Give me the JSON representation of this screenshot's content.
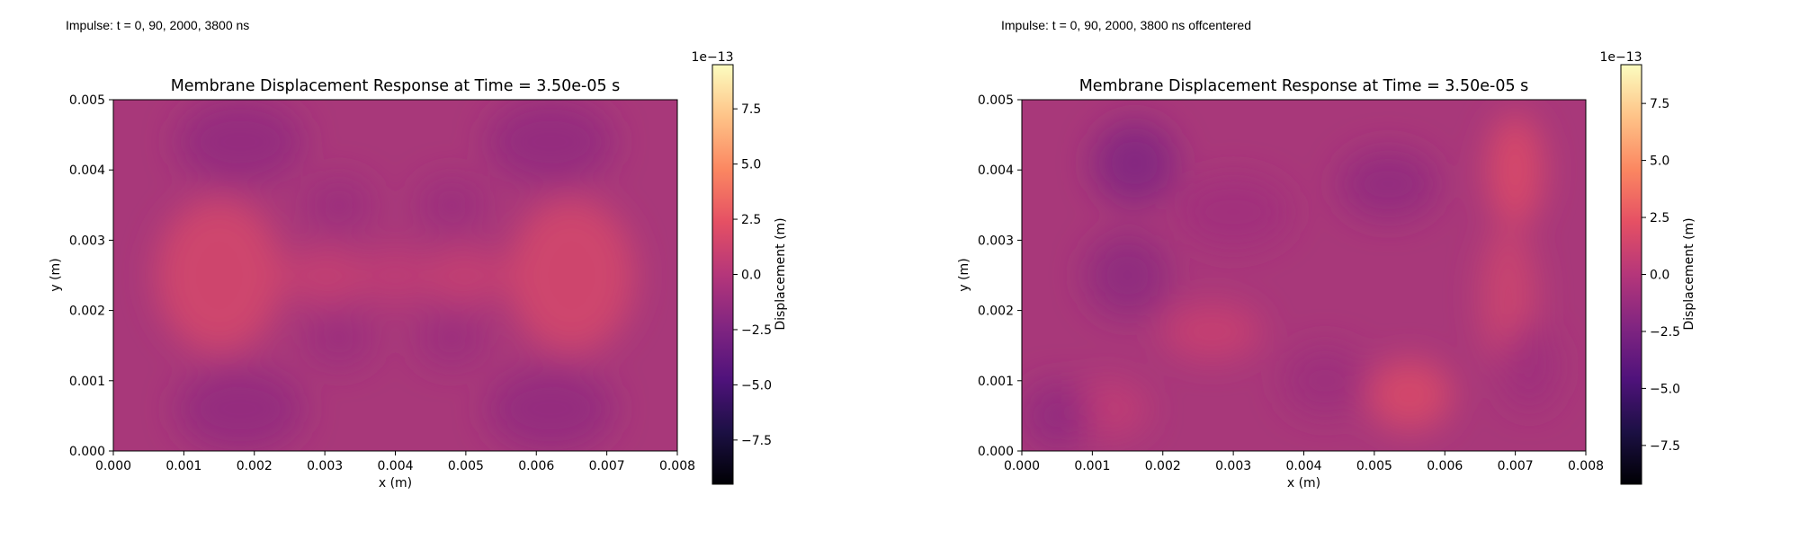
{
  "panels": [
    {
      "caption": "Impulse: t = 0, 90, 2000, 3800 ns",
      "chart_data": {
        "type": "heatmap",
        "title": "Membrane Displacement Response at Time = 3.50e-05 s",
        "xlabel": "x (m)",
        "ylabel": "y (m)",
        "xlim": [
          0,
          0.008
        ],
        "ylim": [
          0,
          0.005
        ],
        "x_ticks": [
          "0.000",
          "0.001",
          "0.002",
          "0.003",
          "0.004",
          "0.005",
          "0.006",
          "0.007",
          "0.008"
        ],
        "y_ticks": [
          "0.000",
          "0.001",
          "0.002",
          "0.003",
          "0.004",
          "0.005"
        ],
        "colormap": "magma",
        "colorbar": {
          "label": "Displacement (m)",
          "scale_label": "1e−13",
          "range": [
            -9.5,
            9.5
          ],
          "ticks": [
            "7.5",
            "5.0",
            "2.5",
            "0.0",
            "−2.5",
            "−5.0",
            "−7.5"
          ],
          "tick_values": [
            7.5,
            5.0,
            2.5,
            0.0,
            -2.5,
            -5.0,
            -7.5
          ]
        },
        "field": [
          {
            "x": 0.0015,
            "y": 0.0025,
            "value": 1.6,
            "sx": 0.0009,
            "sy": 0.0011
          },
          {
            "x": 0.0065,
            "y": 0.0025,
            "value": 1.6,
            "sx": 0.0009,
            "sy": 0.0011
          },
          {
            "x": 0.003,
            "y": 0.0025,
            "value": 0.9,
            "sx": 0.0006,
            "sy": 0.0004
          },
          {
            "x": 0.005,
            "y": 0.0025,
            "value": 0.9,
            "sx": 0.0006,
            "sy": 0.0004
          },
          {
            "x": 0.004,
            "y": 0.0025,
            "value": 0.6,
            "sx": 0.0005,
            "sy": 0.0004
          },
          {
            "x": 0.0018,
            "y": 0.0044,
            "value": -1.6,
            "sx": 0.0009,
            "sy": 0.0006
          },
          {
            "x": 0.0062,
            "y": 0.0044,
            "value": -1.6,
            "sx": 0.0009,
            "sy": 0.0006
          },
          {
            "x": 0.0018,
            "y": 0.0006,
            "value": -1.6,
            "sx": 0.0009,
            "sy": 0.0006
          },
          {
            "x": 0.0062,
            "y": 0.0006,
            "value": -1.6,
            "sx": 0.0009,
            "sy": 0.0006
          },
          {
            "x": 0.0032,
            "y": 0.0035,
            "value": -1.2,
            "sx": 0.0005,
            "sy": 0.0004
          },
          {
            "x": 0.0048,
            "y": 0.0035,
            "value": -1.2,
            "sx": 0.0005,
            "sy": 0.0004
          },
          {
            "x": 0.0032,
            "y": 0.0016,
            "value": -1.2,
            "sx": 0.0005,
            "sy": 0.0004
          },
          {
            "x": 0.0048,
            "y": 0.0016,
            "value": -1.2,
            "sx": 0.0005,
            "sy": 0.0004
          }
        ]
      }
    },
    {
      "caption": "Impulse: t = 0, 90, 2000, 3800 ns offcentered",
      "chart_data": {
        "type": "heatmap",
        "title": "Membrane Displacement Response at Time = 3.50e-05 s",
        "xlabel": "x (m)",
        "ylabel": "y (m)",
        "xlim": [
          0,
          0.008
        ],
        "ylim": [
          0,
          0.005
        ],
        "x_ticks": [
          "0.000",
          "0.001",
          "0.002",
          "0.003",
          "0.004",
          "0.005",
          "0.006",
          "0.007",
          "0.008"
        ],
        "y_ticks": [
          "0.000",
          "0.001",
          "0.002",
          "0.003",
          "0.004",
          "0.005"
        ],
        "colormap": "magma",
        "colorbar": {
          "label": "Displacement (m)",
          "scale_label": "1e−13",
          "range": [
            -9.2,
            9.2
          ],
          "ticks": [
            "7.5",
            "5.0",
            "2.5",
            "0.0",
            "−2.5",
            "−5.0",
            "−7.5"
          ],
          "tick_values": [
            7.5,
            5.0,
            2.5,
            0.0,
            -2.5,
            -5.0,
            -7.5
          ]
        },
        "field": [
          {
            "x": 0.007,
            "y": 0.004,
            "value": 1.9,
            "sx": 0.0004,
            "sy": 0.0008
          },
          {
            "x": 0.0069,
            "y": 0.0022,
            "value": 1.2,
            "sx": 0.0004,
            "sy": 0.001
          },
          {
            "x": 0.0055,
            "y": 0.0008,
            "value": 1.8,
            "sx": 0.0006,
            "sy": 0.0005
          },
          {
            "x": 0.0027,
            "y": 0.0017,
            "value": 1.0,
            "sx": 0.0007,
            "sy": 0.0004
          },
          {
            "x": 0.0012,
            "y": 0.0006,
            "value": 0.6,
            "sx": 0.0006,
            "sy": 0.0004
          },
          {
            "x": 0.0016,
            "y": 0.0041,
            "value": -2.4,
            "sx": 0.0006,
            "sy": 0.0006
          },
          {
            "x": 0.0015,
            "y": 0.0025,
            "value": -1.8,
            "sx": 0.0006,
            "sy": 0.0006
          },
          {
            "x": 0.0005,
            "y": 0.0005,
            "value": -1.6,
            "sx": 0.0005,
            "sy": 0.0005
          },
          {
            "x": 0.0052,
            "y": 0.0038,
            "value": -1.6,
            "sx": 0.0007,
            "sy": 0.0005
          },
          {
            "x": 0.0043,
            "y": 0.001,
            "value": -1.1,
            "sx": 0.0006,
            "sy": 0.0005
          },
          {
            "x": 0.0072,
            "y": 0.0012,
            "value": -1.0,
            "sx": 0.0004,
            "sy": 0.0006
          },
          {
            "x": 0.003,
            "y": 0.0034,
            "value": -0.9,
            "sx": 0.0008,
            "sy": 0.0005
          }
        ]
      }
    }
  ]
}
